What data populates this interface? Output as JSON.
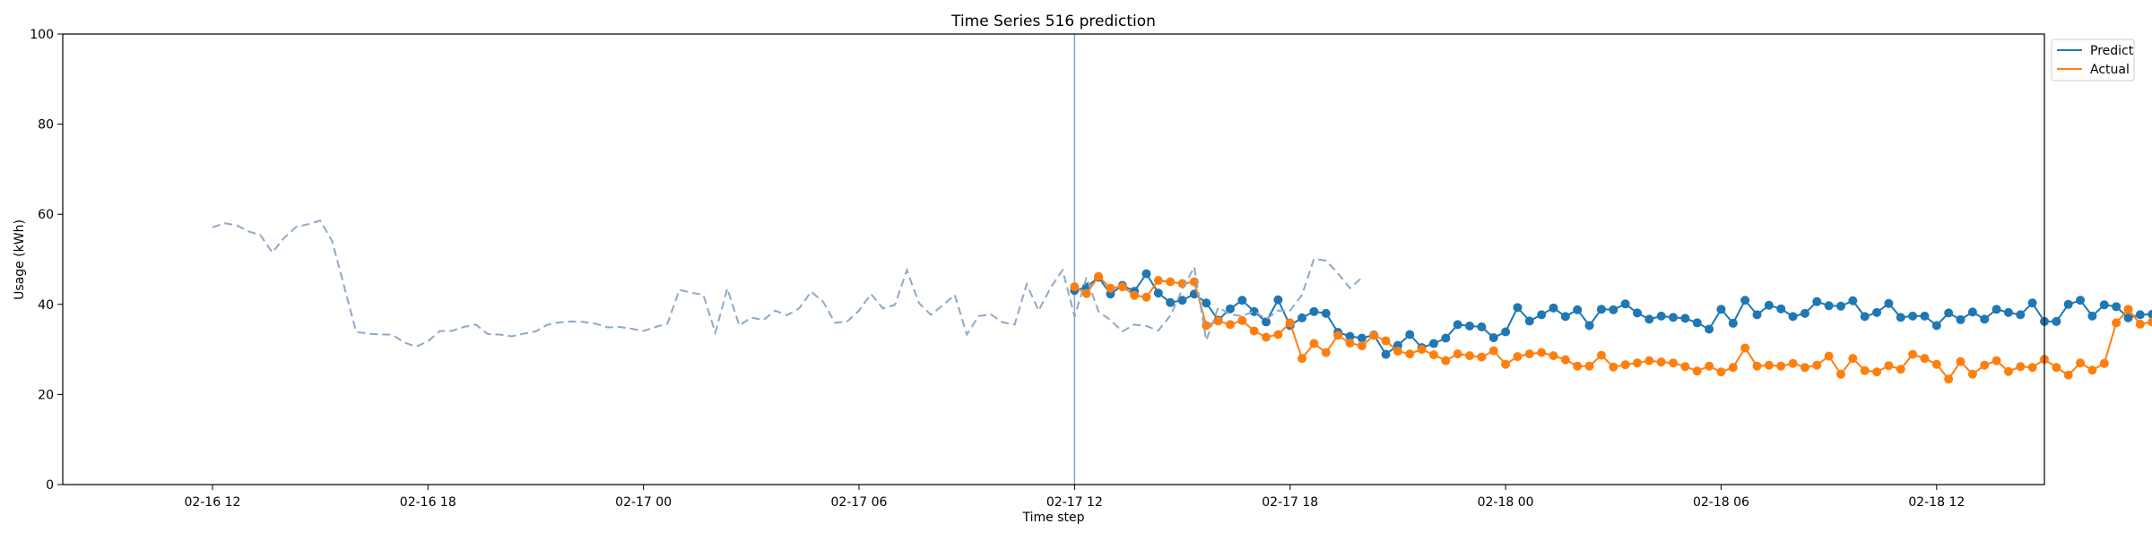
{
  "chart_data": {
    "type": "line",
    "title": "Time Series 516 prediction",
    "xlabel": "Time step",
    "ylabel": "Usage (kWh)",
    "ylim": [
      0,
      100
    ],
    "yticks": [
      0,
      20,
      40,
      60,
      80,
      100
    ],
    "xlim": [
      "2016-02-16 07:50",
      "2016-02-18 15:00"
    ],
    "xticks": [
      {
        "t": "2016-02-16 12:00",
        "label": "02-16 12"
      },
      {
        "t": "2016-02-16 18:00",
        "label": "02-16 18"
      },
      {
        "t": "2016-02-17 00:00",
        "label": "02-17 00"
      },
      {
        "t": "2016-02-17 06:00",
        "label": "02-17 06"
      },
      {
        "t": "2016-02-17 12:00",
        "label": "02-17 12"
      },
      {
        "t": "2016-02-17 18:00",
        "label": "02-17 18"
      },
      {
        "t": "2016-02-18 00:00",
        "label": "02-18 00"
      },
      {
        "t": "2016-02-18 06:00",
        "label": "02-18 06"
      },
      {
        "t": "2016-02-18 12:00",
        "label": "02-18 12"
      }
    ],
    "prediction_start": "2016-02-17 12:00",
    "grid": false,
    "legend_position": "top-right",
    "colors": {
      "predict": "#1f77b4",
      "actual": "#ff7f0e",
      "history": "#8fa8c8",
      "vline": "#7f9fd0"
    },
    "series": [
      {
        "name": "Predict",
        "role": "predict",
        "start": "2016-02-17 12:00",
        "interval_minutes": 20,
        "values": [
          43.1,
          43.8,
          46.0,
          42.3,
          44.2,
          42.9,
          46.8,
          42.5,
          40.4,
          40.9,
          42.3,
          40.3,
          36.5,
          39.0,
          40.9,
          38.4,
          36.1,
          41.0,
          35.3,
          37.0,
          38.4,
          38.0,
          33.8,
          32.9,
          32.5,
          33.2,
          28.9,
          30.9,
          33.3,
          30.4,
          31.3,
          32.5,
          35.5,
          35.2,
          35.0,
          32.6,
          33.9,
          39.3,
          36.3,
          37.7,
          39.2,
          37.3,
          38.8,
          35.3,
          38.9,
          38.8,
          40.1,
          38.1,
          36.7,
          37.4,
          37.1,
          36.9,
          35.9,
          34.5,
          38.9,
          35.8,
          40.9,
          37.7,
          39.8,
          39.0,
          37.3,
          38.0,
          40.6,
          39.7,
          39.6,
          40.8,
          37.3,
          38.2,
          40.2,
          37.1,
          37.4,
          37.4,
          35.3,
          38.1,
          36.6,
          38.3,
          36.7,
          38.9,
          38.2,
          37.7,
          40.3,
          36.2,
          36.2,
          40.0,
          40.9,
          37.4,
          39.9,
          39.5,
          37.0,
          37.7,
          37.8,
          39.2,
          41.8,
          40.3,
          41.5,
          37.4
        ]
      },
      {
        "name": "Actual",
        "role": "actual",
        "start": "2016-02-17 12:00",
        "interval_minutes": 20,
        "values": [
          43.9,
          42.4,
          46.2,
          43.6,
          43.9,
          42.0,
          41.6,
          45.3,
          45.0,
          44.6,
          45.0,
          35.3,
          36.3,
          35.5,
          36.4,
          34.1,
          32.7,
          33.3,
          35.9,
          28.0,
          31.3,
          29.3,
          33.1,
          31.4,
          30.8,
          33.1,
          31.9,
          29.6,
          29.0,
          30.0,
          28.8,
          27.5,
          29.0,
          28.6,
          28.3,
          29.7,
          26.7,
          28.4,
          29.0,
          29.3,
          28.6,
          27.7,
          26.3,
          26.3,
          28.7,
          26.1,
          26.6,
          27.0,
          27.5,
          27.2,
          27.0,
          26.2,
          25.2,
          26.3,
          25.0,
          26.0,
          30.3,
          26.3,
          26.5,
          26.3,
          26.9,
          26.0,
          26.5,
          28.5,
          24.5,
          28.0,
          25.3,
          25.0,
          26.4,
          25.6,
          28.9,
          28.0,
          26.7,
          23.4,
          27.3,
          24.5,
          26.5,
          27.5,
          25.1,
          26.2,
          26.0,
          27.8,
          26.0,
          24.3,
          27.0,
          25.4,
          26.9,
          35.9,
          38.9,
          35.6,
          36.1,
          37.0,
          35.9,
          35.5,
          35.7,
          34.5
        ]
      },
      {
        "role": "history",
        "start": "2016-02-16 12:00",
        "interval_minutes": 20,
        "values": [
          57.1,
          58.0,
          57.6,
          56.2,
          55.4,
          51.5,
          54.8,
          57.2,
          57.8,
          58.6,
          54.0,
          44.0,
          33.9,
          33.5,
          33.3,
          33.3,
          31.6,
          30.6,
          31.8,
          34.1,
          34.1,
          35.0,
          35.5,
          33.4,
          33.3,
          32.9,
          33.5,
          34.0,
          35.5,
          36.0,
          36.2,
          36.1,
          35.7,
          34.9,
          35.0,
          34.6,
          34.1,
          35.0,
          35.7,
          43.2,
          42.6,
          42.1,
          33.7,
          43.5,
          35.3,
          37.1,
          36.5,
          38.6,
          37.6,
          39.1,
          42.8,
          40.6,
          35.9,
          36.2,
          38.6,
          42.3,
          39.1,
          39.9,
          47.6,
          40.3,
          37.7,
          39.8,
          42.1,
          33.3,
          37.4,
          37.8,
          36.0,
          35.5,
          44.5,
          38.6,
          43.7,
          47.6,
          37.3,
          46.0,
          38.4,
          36.5,
          34.0,
          35.5,
          35.2,
          34.2,
          37.5,
          43.3,
          48.3,
          32.0,
          39.3,
          37.8,
          37.4,
          38.5,
          36.7,
          38.6,
          38.6,
          42.1,
          50.1,
          49.7,
          46.9,
          43.6,
          45.9
        ]
      }
    ]
  }
}
